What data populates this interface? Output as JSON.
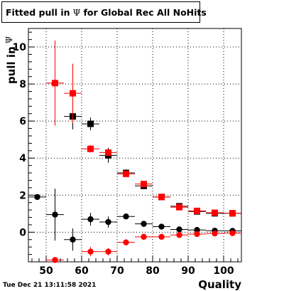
{
  "header": {
    "title_prefix": "Fitted pull in",
    "title_symbol": "Ψ",
    "title_suffix": "for Global Rec All NoHits"
  },
  "footer": {
    "timestamp": "Tue Dec 21 13:11:58 2021"
  },
  "chart_data": {
    "type": "scatter",
    "title": "Fitted pull in Ψ for Global Rec All NoHits",
    "xlabel": "Quality",
    "ylabel_text": "pull in",
    "ylabel_symbol": "Ψ",
    "xlim": [
      45,
      105
    ],
    "ylim": [
      -1.6,
      11.0
    ],
    "x_ticks": [
      50,
      60,
      70,
      80,
      90,
      100
    ],
    "y_ticks": [
      0,
      2,
      4,
      6,
      8,
      10
    ],
    "grid": true,
    "bin_half_width": 2.5,
    "series": [
      {
        "color": "#000000",
        "marker": "square",
        "points": [
          {
            "x": 57.5,
            "y": 6.25,
            "err": 0.7
          },
          {
            "x": 62.5,
            "y": 5.85,
            "err": 0.35
          },
          {
            "x": 67.5,
            "y": 4.15,
            "err": 0.4
          },
          {
            "x": 72.5,
            "y": 3.2,
            "err": 0.2
          },
          {
            "x": 77.5,
            "y": 2.5,
            "err": 0.12
          },
          {
            "x": 82.5,
            "y": 1.9,
            "err": 0.08
          },
          {
            "x": 87.5,
            "y": 1.4,
            "err": 0.07
          },
          {
            "x": 92.5,
            "y": 1.12,
            "err": 0.06
          },
          {
            "x": 97.5,
            "y": 1.02,
            "err": 0.05
          },
          {
            "x": 102.5,
            "y": 1.02,
            "err": 0.05
          }
        ]
      },
      {
        "color": "#ff0000",
        "marker": "square",
        "points": [
          {
            "x": 52.5,
            "y": 8.05,
            "err": 2.3
          },
          {
            "x": 57.5,
            "y": 7.5,
            "err": 1.6
          },
          {
            "x": 62.5,
            "y": 4.5,
            "err": 0.2
          },
          {
            "x": 67.5,
            "y": 4.3,
            "err": 0.15
          },
          {
            "x": 72.5,
            "y": 3.15,
            "err": 0.1
          },
          {
            "x": 77.5,
            "y": 2.6,
            "err": 0.08
          },
          {
            "x": 82.5,
            "y": 1.9,
            "err": 0.06
          },
          {
            "x": 87.5,
            "y": 1.35,
            "err": 0.05
          },
          {
            "x": 92.5,
            "y": 1.15,
            "err": 0.05
          },
          {
            "x": 97.5,
            "y": 1.05,
            "err": 0.05
          },
          {
            "x": 102.5,
            "y": 1.02,
            "err": 0.04
          }
        ]
      },
      {
        "color": "#000000",
        "marker": "circle",
        "points": [
          {
            "x": 47.5,
            "y": 1.9,
            "err": 0.1
          },
          {
            "x": 52.5,
            "y": 0.95,
            "err": 1.4
          },
          {
            "x": 57.5,
            "y": -0.4,
            "err": 0.6
          },
          {
            "x": 62.5,
            "y": 0.7,
            "err": 0.35
          },
          {
            "x": 67.5,
            "y": 0.55,
            "err": 0.3
          },
          {
            "x": 72.5,
            "y": 0.85,
            "err": 0.12
          },
          {
            "x": 77.5,
            "y": 0.45,
            "err": 0.08
          },
          {
            "x": 82.5,
            "y": 0.3,
            "err": 0.06
          },
          {
            "x": 87.5,
            "y": 0.15,
            "err": 0.05
          },
          {
            "x": 92.5,
            "y": 0.12,
            "err": 0.04
          },
          {
            "x": 97.5,
            "y": 0.08,
            "err": 0.04
          },
          {
            "x": 102.5,
            "y": 0.07,
            "err": 0.04
          }
        ]
      },
      {
        "color": "#ff0000",
        "marker": "circle",
        "points": [
          {
            "x": 52.5,
            "y": -1.5,
            "err": 0.1
          },
          {
            "x": 62.5,
            "y": -1.05,
            "err": 0.25
          },
          {
            "x": 67.5,
            "y": -1.05,
            "err": 0.2
          },
          {
            "x": 72.5,
            "y": -0.55,
            "err": 0.1
          },
          {
            "x": 77.5,
            "y": -0.25,
            "err": 0.07
          },
          {
            "x": 82.5,
            "y": -0.25,
            "err": 0.05
          },
          {
            "x": 87.5,
            "y": -0.15,
            "err": 0.05
          },
          {
            "x": 92.5,
            "y": -0.1,
            "err": 0.04
          },
          {
            "x": 97.5,
            "y": -0.07,
            "err": 0.04
          },
          {
            "x": 102.5,
            "y": -0.05,
            "err": 0.04
          }
        ]
      }
    ]
  }
}
